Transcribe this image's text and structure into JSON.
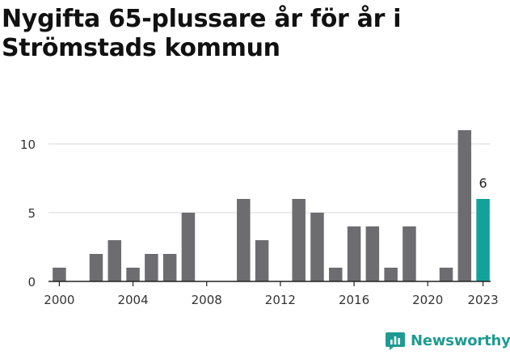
{
  "title": "Nygifta 65-plussare år för år i Strömstads kommun",
  "brand": {
    "name": "Newsworthy",
    "color": "#1f9a92",
    "icon": "newsworthy-logo-icon"
  },
  "colors": {
    "bar": "#6d6c71",
    "highlight": "#11a39a",
    "grid": "#d9d9d9",
    "axis": "#222222",
    "text": "#333333"
  },
  "chart_data": {
    "type": "bar",
    "title": "Nygifta 65-plussare år för år i Strömstads kommun",
    "xlabel": "",
    "ylabel": "",
    "x": [
      2000,
      2001,
      2002,
      2003,
      2004,
      2005,
      2006,
      2007,
      2008,
      2009,
      2010,
      2011,
      2012,
      2013,
      2014,
      2015,
      2016,
      2017,
      2018,
      2019,
      2020,
      2021,
      2022,
      2023
    ],
    "values": [
      1,
      0,
      2,
      3,
      1,
      2,
      2,
      5,
      0,
      0,
      6,
      3,
      0,
      6,
      5,
      1,
      4,
      4,
      1,
      4,
      0,
      1,
      11,
      6
    ],
    "highlight": 2023,
    "data_labels": [
      {
        "x": 2023,
        "label": "6"
      }
    ],
    "x_ticks": [
      "2000",
      "2004",
      "2008",
      "2012",
      "2016",
      "2020",
      "2023"
    ],
    "y_ticks": [
      "0",
      "5",
      "10"
    ],
    "ylim": [
      0,
      11
    ],
    "grid": true,
    "legend": "none"
  }
}
